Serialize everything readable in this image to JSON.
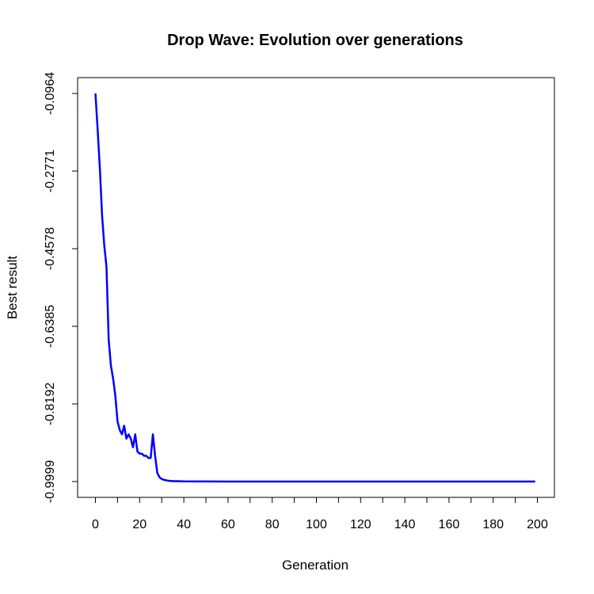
{
  "chart_data": {
    "type": "line",
    "title": "Drop Wave: Evolution over generations",
    "xlabel": "Generation",
    "ylabel": "Best result",
    "xlim": [
      0,
      200
    ],
    "ylim": [
      -0.9999,
      -0.0964
    ],
    "x_ticks": [
      0,
      20,
      40,
      60,
      80,
      100,
      120,
      140,
      160,
      180,
      200
    ],
    "y_ticks": [
      -0.9999,
      -0.8192,
      -0.6385,
      -0.4578,
      -0.2771,
      -0.0964
    ],
    "y_tick_labels": [
      "-0.9999",
      "-0.8192",
      "-0.6385",
      "-0.4578",
      "-0.2771",
      "-0.0964"
    ],
    "grid": false,
    "series": [
      {
        "color": "#0000ff",
        "x": [
          0,
          1,
          2,
          3,
          4,
          5,
          6,
          7,
          8,
          9,
          10,
          11,
          12,
          13,
          14,
          15,
          16,
          17,
          18,
          19,
          20,
          21,
          22,
          23,
          24,
          25,
          26,
          27,
          28,
          29,
          30,
          31,
          32,
          33,
          34,
          35,
          36,
          38,
          40,
          45,
          50,
          60,
          80,
          100,
          120,
          140,
          160,
          180,
          199
        ],
        "y": [
          -0.0964,
          -0.18,
          -0.27,
          -0.38,
          -0.45,
          -0.5,
          -0.67,
          -0.73,
          -0.76,
          -0.8,
          -0.86,
          -0.88,
          -0.89,
          -0.87,
          -0.9,
          -0.89,
          -0.9,
          -0.92,
          -0.89,
          -0.93,
          -0.935,
          -0.935,
          -0.94,
          -0.94,
          -0.945,
          -0.945,
          -0.89,
          -0.94,
          -0.98,
          -0.99,
          -0.994,
          -0.996,
          -0.997,
          -0.998,
          -0.9985,
          -0.999,
          -0.999,
          -0.9992,
          -0.9995,
          -0.9996,
          -0.9997,
          -0.9998,
          -0.9999,
          -0.9999,
          -0.9999,
          -0.9999,
          -0.9999,
          -0.9999,
          -0.9999
        ]
      }
    ]
  }
}
